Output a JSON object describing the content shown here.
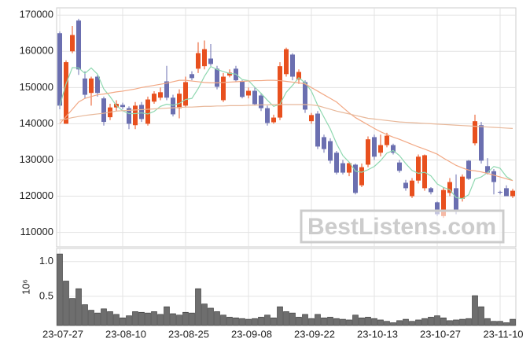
{
  "chart_data": {
    "type": "candlestick",
    "categories": [
      "23-07-27",
      null,
      null,
      null,
      null,
      null,
      null,
      null,
      null,
      null,
      "23-08-10",
      null,
      null,
      null,
      null,
      null,
      null,
      null,
      null,
      null,
      "23-08-25",
      null,
      null,
      null,
      null,
      null,
      null,
      null,
      null,
      null,
      "23-09-08",
      null,
      null,
      null,
      null,
      null,
      null,
      null,
      null,
      null,
      "23-09-22",
      null,
      null,
      null,
      null,
      null,
      null,
      null,
      null,
      null,
      "23-10-13",
      null,
      null,
      null,
      null,
      null,
      null,
      null,
      null,
      null,
      "23-10-27",
      null,
      null,
      null,
      null,
      null,
      null,
      null,
      null,
      null,
      "23-11-10",
      null,
      null
    ],
    "open": [
      165000,
      140000,
      160000,
      168500,
      152500,
      148500,
      153000,
      147000,
      141800,
      144500,
      145200,
      144300,
      139600,
      145200,
      140000,
      146100,
      147200,
      151700,
      147200,
      144300,
      145000,
      153700,
      155200,
      155900,
      158000,
      155200,
      146500,
      153300,
      155200,
      151700,
      147800,
      149100,
      147800,
      144300,
      140400,
      141700,
      153700,
      159100,
      152200,
      151500,
      140700,
      142800,
      136300,
      135200,
      132000,
      129100,
      126500,
      128700,
      123000,
      128700,
      136300,
      132000,
      134100,
      134100,
      129300,
      123700,
      120000,
      124300,
      122200,
      122200,
      118300,
      114500,
      120900,
      122200,
      119300,
      129800,
      134600,
      139600,
      128300,
      126900,
      121200,
      122200,
      120000
    ],
    "high": [
      165500,
      157500,
      167000,
      169000,
      154500,
      153000,
      153500,
      147500,
      145500,
      146500,
      145800,
      144800,
      146000,
      146000,
      147500,
      149000,
      150000,
      156000,
      148000,
      149500,
      153000,
      154500,
      162500,
      163000,
      162000,
      156000,
      154000,
      155000,
      156000,
      152000,
      150000,
      150000,
      148500,
      145000,
      142500,
      157000,
      161000,
      159500,
      155000,
      152000,
      143000,
      143500,
      137000,
      136000,
      132500,
      130000,
      129500,
      129000,
      129000,
      136500,
      137000,
      137000,
      137500,
      134500,
      130000,
      124500,
      125000,
      131500,
      131500,
      122500,
      118500,
      122500,
      125000,
      126000,
      126000,
      130000,
      142500,
      140500,
      130500,
      127500,
      121500,
      123000,
      122000
    ],
    "low": [
      144000,
      140000,
      159500,
      153500,
      147000,
      145000,
      147500,
      139500,
      141000,
      143500,
      144000,
      138500,
      138500,
      140500,
      139500,
      145500,
      146500,
      146500,
      142000,
      141500,
      144500,
      152000,
      154000,
      155000,
      156000,
      149500,
      146000,
      152800,
      151500,
      147000,
      147000,
      145000,
      143500,
      139500,
      140000,
      141000,
      153000,
      152000,
      151000,
      143000,
      140000,
      133000,
      132000,
      129000,
      126000,
      126000,
      125500,
      120500,
      122500,
      128000,
      130000,
      131000,
      133500,
      131500,
      126500,
      121500,
      119500,
      123500,
      121500,
      120500,
      114500,
      114000,
      120000,
      115000,
      118500,
      124500,
      134000,
      129000,
      126000,
      120500,
      120500,
      120000,
      119500
    ],
    "close": [
      145000,
      157000,
      164500,
      155000,
      148000,
      152500,
      148500,
      140500,
      144500,
      145500,
      144600,
      140000,
      145000,
      141300,
      146700,
      148300,
      148700,
      147200,
      142600,
      148300,
      151500,
      152600,
      159500,
      160600,
      156500,
      150200,
      153000,
      154100,
      152000,
      147400,
      149100,
      145400,
      144300,
      140200,
      141700,
      155900,
      160600,
      153000,
      154300,
      143900,
      142400,
      133700,
      133000,
      129800,
      126500,
      126500,
      129100,
      120900,
      128000,
      135700,
      130900,
      134100,
      136700,
      132000,
      127000,
      122200,
      124300,
      130900,
      131300,
      121100,
      115000,
      121700,
      123900,
      115700,
      125400,
      124800,
      140700,
      129800,
      126500,
      123900,
      121000,
      120000,
      121500
    ],
    "up_color": "#e8501e",
    "down_color": "#6b6fb0",
    "lines": [
      {
        "color": "#8fd8b0",
        "values": [
          145000,
          151000,
          155500,
          155400,
          153900,
          155400,
          153700,
          149600,
          147500,
          145000,
          143600,
          142800,
          142800,
          143000,
          142700,
          143400,
          144800,
          145400,
          145100,
          145600,
          146700,
          147000,
          149700,
          153100,
          155800,
          155000,
          154400,
          153900,
          153700,
          152200,
          151900,
          150100,
          148400,
          146500,
          144800,
          145400,
          148700,
          150600,
          152700,
          151300,
          149000,
          145100,
          141800,
          138600,
          134500,
          131200,
          129400,
          126900,
          126600,
          127300,
          128200,
          129800,
          131900,
          132600,
          131200,
          129000,
          127100,
          126300,
          126600,
          125600,
          123400,
          122400,
          121800,
          119600,
          119300,
          120400,
          124700,
          125300,
          126500,
          128200,
          127700,
          125400,
          124300
        ]
      },
      {
        "color": "#f2a884",
        "values": [
          140000,
          142000,
          144000,
          146000,
          147000,
          147500,
          148000,
          148200,
          148500,
          148800,
          149000,
          149300,
          149600,
          150000,
          150300,
          150600,
          150900,
          151200,
          151600,
          152000,
          152000,
          151800,
          151600,
          151400,
          151300,
          151300,
          151400,
          151500,
          151600,
          151700,
          151800,
          151900,
          151900,
          152000,
          152000,
          151900,
          151700,
          151500,
          151300,
          151000,
          150000,
          149000,
          148000,
          147000,
          146000,
          144500,
          143000,
          141700,
          140700,
          139700,
          138700,
          137800,
          137000,
          136300,
          135700,
          135000,
          134300,
          133600,
          133000,
          132300,
          131600,
          130500,
          129500,
          128500,
          127800,
          127200,
          127000,
          126700,
          126300,
          125800,
          125300,
          124800,
          124300
        ]
      },
      {
        "color": "#e8b89a",
        "values": [
          141000,
          141300,
          141700,
          142000,
          142300,
          142500,
          142700,
          142900,
          143200,
          143500,
          143600,
          143700,
          143800,
          143900,
          144000,
          144100,
          144200,
          144300,
          144400,
          144500,
          144600,
          144600,
          144700,
          144800,
          144800,
          144900,
          144900,
          145000,
          145000,
          145000,
          145100,
          145100,
          145200,
          145200,
          145300,
          145300,
          145300,
          145300,
          145300,
          145300,
          145200,
          145000,
          144500,
          144000,
          143500,
          143100,
          142700,
          142300,
          141900,
          141500,
          141300,
          141100,
          140900,
          140700,
          140500,
          140400,
          140300,
          140200,
          140100,
          140000,
          139900,
          139800,
          139700,
          139600,
          139500,
          139400,
          139300,
          139200,
          139100,
          139000,
          138900,
          138800,
          138700
        ]
      }
    ],
    "ylim": [
      106000,
      172000
    ],
    "yticks": [
      110000,
      120000,
      130000,
      140000,
      150000,
      160000,
      170000
    ],
    "volume": [
      1.11,
      0.72,
      0.47,
      0.61,
      0.38,
      0.3,
      0.26,
      0.32,
      0.28,
      0.24,
      0.19,
      0.22,
      0.28,
      0.27,
      0.26,
      0.28,
      0.24,
      0.35,
      0.25,
      0.23,
      0.27,
      0.26,
      0.61,
      0.39,
      0.33,
      0.28,
      0.23,
      0.2,
      0.19,
      0.18,
      0.17,
      0.18,
      0.2,
      0.23,
      0.19,
      0.35,
      0.28,
      0.26,
      0.2,
      0.24,
      0.18,
      0.24,
      0.19,
      0.2,
      0.18,
      0.17,
      0.16,
      0.23,
      0.19,
      0.2,
      0.18,
      0.16,
      0.14,
      0.12,
      0.15,
      0.17,
      0.14,
      0.16,
      0.18,
      0.2,
      0.22,
      0.19,
      0.15,
      0.16,
      0.17,
      0.18,
      0.51,
      0.35,
      0.18,
      0.14,
      0.14,
      0.12,
      0.17
    ],
    "volume_color": "#6e6e6e",
    "volume_ylim": [
      0.08,
      1.19
    ],
    "volume_yticks": [
      0.5,
      {
        "value": 1,
        "label": "1.0"
      }
    ],
    "volume_scale_label": "10⁶",
    "grid": true,
    "watermark": "BestListens.com"
  }
}
